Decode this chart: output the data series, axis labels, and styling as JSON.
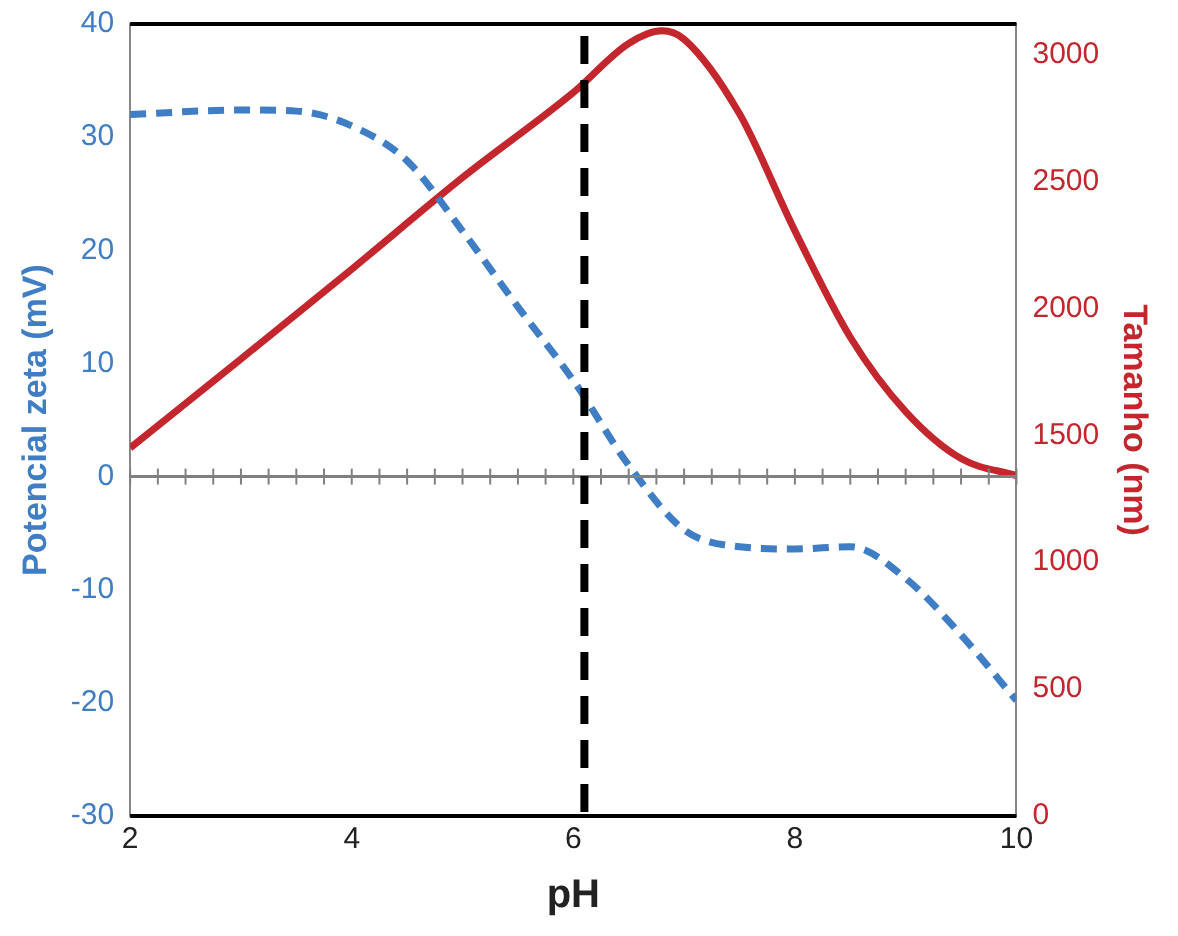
{
  "chart_data": {
    "type": "line",
    "xlabel": "pH",
    "ylabel": "Potencial zeta (mV)",
    "y2label": "Tamanho (nm)",
    "xlim": [
      2,
      10
    ],
    "xticks": [
      2,
      4,
      6,
      8,
      10
    ],
    "ylim": [
      -30,
      40
    ],
    "yticks": [
      -30,
      -20,
      -10,
      0,
      10,
      20,
      30,
      40
    ],
    "y2lim": [
      0,
      3120
    ],
    "y2ticks": [
      0,
      500,
      1000,
      1500,
      2000,
      2500,
      3000
    ],
    "grid": false,
    "legend": false,
    "marker": "none",
    "series": [
      {
        "color": "#3f7dc4",
        "line_style": "dashed",
        "axis": "y",
        "x": [
          2,
          3,
          3.5,
          4,
          4.5,
          5,
          5.5,
          6,
          6.5,
          7,
          7.5,
          8,
          8.5,
          9,
          9.5,
          10
        ],
        "values": [
          32,
          32.4,
          32.3,
          31,
          27.9,
          21.7,
          15,
          8.5,
          1,
          -4.7,
          -6.2,
          -6.4,
          -6.2,
          -9,
          -14,
          -19.8
        ]
      },
      {
        "color": "#c4262e",
        "line_style": "solid",
        "axis": "y2",
        "x": [
          2,
          3,
          4,
          5,
          6,
          6.5,
          6.8,
          7,
          7.5,
          8,
          8.5,
          9,
          9.5,
          10
        ],
        "values": [
          1450,
          1800,
          2154,
          2515,
          2850,
          3043,
          3093,
          3060,
          2766,
          2305,
          1886,
          1593,
          1408,
          1341
        ]
      }
    ],
    "ref_lines": [
      {
        "axis": "y",
        "value": 0,
        "color": "#808080",
        "line_style": "solid"
      },
      {
        "axis": "x",
        "value": 6.1,
        "color": "#000000",
        "line_style": "dashed"
      }
    ]
  }
}
